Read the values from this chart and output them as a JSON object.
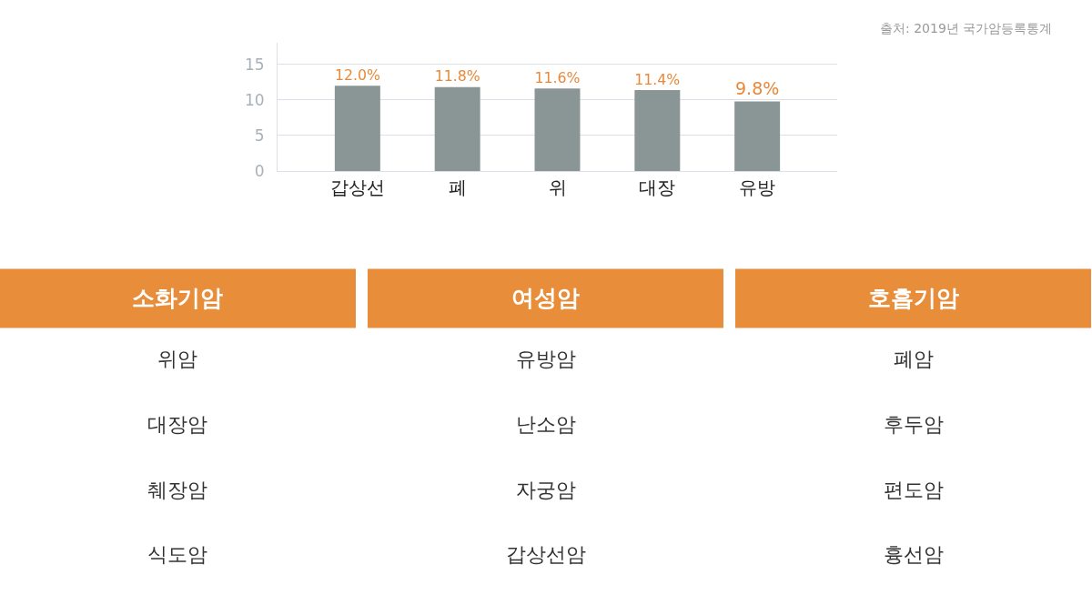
{
  "chart_data": [
    {
      "type": "bar",
      "categories": [
        "갑상선",
        "폐",
        "위",
        "대장",
        "유방"
      ],
      "values": [
        12.0,
        11.8,
        11.6,
        11.4,
        9.8
      ],
      "value_labels": [
        "12.0%",
        "11.8%",
        "11.6%",
        "11.4%",
        "9.8%"
      ],
      "color": "#8a9696",
      "ylim": [
        0,
        18
      ],
      "yticks": [
        0,
        5,
        10,
        15
      ],
      "grid": "y",
      "annotations": [
        "출처: 2019년 국가암등록통계"
      ]
    },
    {
      "type": "other",
      "categories": [
        "소화기암",
        "여성암",
        "호흡기암"
      ],
      "color": "#e88e3a",
      "annotations": [
        "위암",
        "유방암",
        "폐암",
        "대장암",
        "난소암",
        "후두암",
        "췌장암",
        "자궁암",
        "편도암",
        "식도암",
        "갑상선암",
        "흉선암"
      ]
    }
  ]
}
